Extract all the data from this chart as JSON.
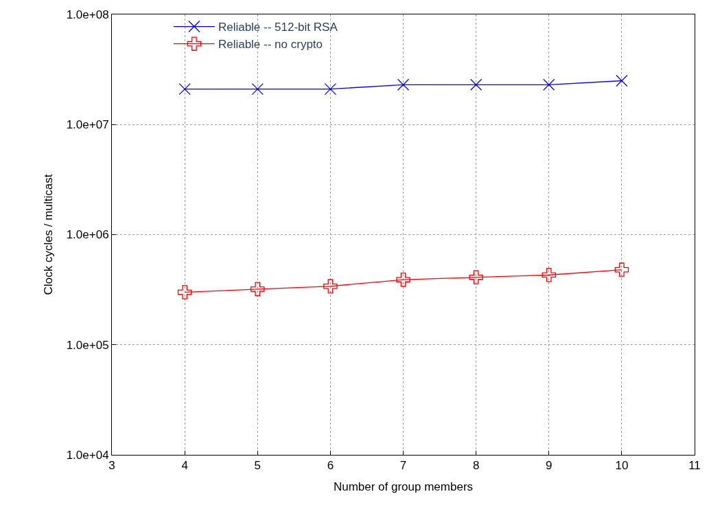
{
  "chart_data": {
    "type": "line",
    "xlabel": "Number of group members",
    "ylabel": "Clock cycles / multicast",
    "log": "y",
    "grid": true,
    "legend": "top left",
    "x": [
      4,
      5,
      6,
      7,
      8,
      9,
      10
    ],
    "series": [
      {
        "name": "Reliable -- 512-bit RSA",
        "color": "#0000ff",
        "marker": "cross",
        "values": [
          21000000,
          21000000,
          21000000,
          23000000,
          23000000,
          23000000,
          25000000
        ]
      },
      {
        "name": "Reliable -- no crypto",
        "color": "#ff0000",
        "marker": "cross",
        "values": [
          300000,
          320000,
          340000,
          390000,
          410000,
          430000,
          480000
        ]
      }
    ],
    "xlim": [
      3,
      11
    ],
    "xticks": [
      3,
      4,
      5,
      6,
      7,
      8,
      9,
      10,
      11
    ],
    "ylim": [
      10000,
      100000000
    ],
    "yticks": [
      {
        "value": 10000,
        "label": "1.0e+04"
      },
      {
        "value": 100000,
        "label": "1.0e+05"
      },
      {
        "value": 1000000,
        "label": "1.0e+06"
      },
      {
        "value": 10000000,
        "label": "1.0e+07"
      },
      {
        "value": 100000000,
        "label": "1.0e+08"
      }
    ]
  }
}
